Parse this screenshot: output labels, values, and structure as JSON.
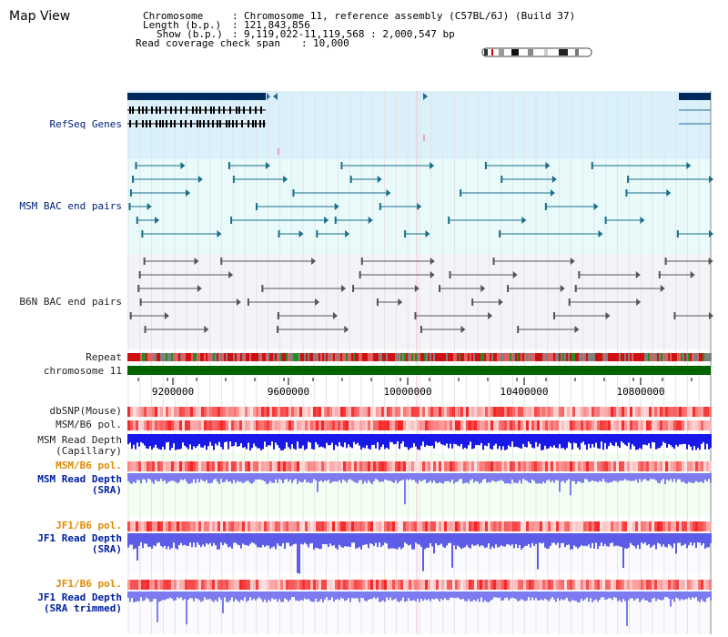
{
  "title": "Map View",
  "header": {
    "chrom_label": "Chromosome",
    "chrom_value": "Chromosome 11, reference assembly (C57BL/6J) (Build 37)",
    "length_label": "Length (b.p.)",
    "length_value": "121,843,856",
    "show_label": "Show (b.p.)",
    "show_value": "9,119,022-11,119,568 : 2,000,547 bp",
    "span_label": "Read coverage check span",
    "span_value": "10,000"
  },
  "tracks": {
    "refseq": "RefSeq Genes",
    "msm_bac": "MSM BAC end pairs",
    "b6n_bac": "B6N BAC end pairs",
    "repeat": "Repeat",
    "chromosome": "chromosome 11",
    "dbsnp": "dbSNP(Mouse)",
    "msm_b6_pol_1": "MSM/B6 pol.",
    "msm_depth_cap": "MSM Read Depth\n(Capillary)",
    "msm_b6_pol_2": "MSM/B6 pol.",
    "msm_depth_sra": "MSM Read Depth\n(SRA)",
    "jf1_b6_pol_1": "JF1/B6 pol.",
    "jf1_depth_sra": "JF1 Read Depth\n(SRA)",
    "jf1_b6_pol_2": "JF1/B6 pol.",
    "jf1_depth_trim": "JF1 Read Depth\n(SRA trimmed)"
  },
  "axis_ticks": [
    "9200000",
    "9600000",
    "10000000",
    "10400000",
    "10800000"
  ],
  "colors": {
    "refseq_bg": "#daf0fa",
    "msm_bg": "#e8fafa",
    "b6n_bg": "#f4f4f8",
    "gene": "#002a5c",
    "bac_msm": "#1a6e8c",
    "bac_b6n": "#555555",
    "chrom": "#006400",
    "depth_cap": "#1818e8",
    "depth_sra": "#7c7cf0",
    "pol_red": "#ff4040"
  }
}
